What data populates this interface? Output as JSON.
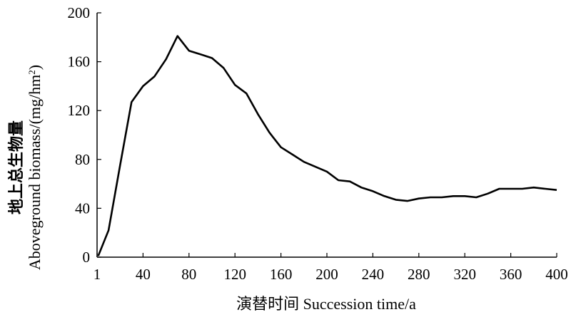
{
  "chart_data": {
    "type": "line",
    "title": "",
    "xlabel": "演替时间 Succession time/a",
    "ylabel_cn": "地上总生物量",
    "ylabel_en_main": "Aboveground biomass/(mg/hm",
    "ylabel_en_sup": "2",
    "ylabel_en_close": ")",
    "xlim": [
      0,
      400
    ],
    "ylim": [
      0,
      200
    ],
    "x_ticks": [
      0,
      40,
      80,
      120,
      160,
      200,
      240,
      280,
      320,
      360,
      400
    ],
    "x_tick_labels": [
      "1",
      "40",
      "80",
      "120",
      "160",
      "200",
      "240",
      "280",
      "320",
      "360",
      "400"
    ],
    "y_ticks": [
      0,
      40,
      80,
      120,
      160,
      200
    ],
    "y_tick_labels": [
      "0",
      "40",
      "80",
      "120",
      "160",
      "200"
    ],
    "grid": false,
    "legend": false,
    "line_color": "#000000",
    "series": [
      {
        "x": [
          1,
          10,
          20,
          30,
          40,
          50,
          60,
          70,
          80,
          90,
          100,
          110,
          120,
          130,
          140,
          150,
          160,
          170,
          180,
          190,
          200,
          210,
          220,
          230,
          240,
          250,
          260,
          270,
          280,
          290,
          300,
          310,
          320,
          330,
          340,
          350,
          360,
          370,
          380,
          390,
          400
        ],
        "values": [
          1,
          22,
          75,
          127,
          140,
          148,
          162,
          181,
          169,
          166,
          163,
          155,
          141,
          134,
          117,
          102,
          90,
          84,
          78,
          74,
          70,
          63,
          62,
          57,
          54,
          50,
          47,
          46,
          48,
          49,
          49,
          50,
          50,
          49,
          52,
          56,
          56,
          56,
          57,
          56,
          55
        ]
      }
    ]
  }
}
